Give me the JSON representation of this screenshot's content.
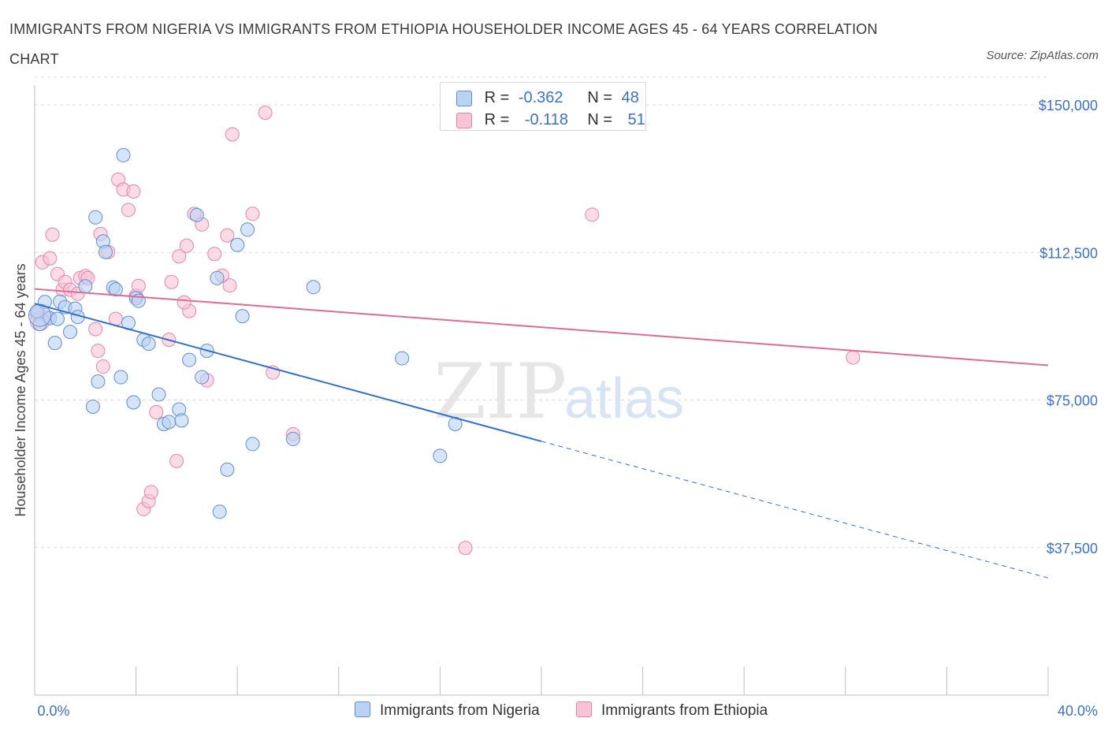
{
  "title": "IMMIGRANTS FROM NIGERIA VS IMMIGRANTS FROM ETHIOPIA HOUSEHOLDER INCOME AGES 45 - 64 YEARS CORRELATION CHART",
  "source": "Source: ZipAtlas.com",
  "watermark": {
    "zip": "ZIP",
    "atlas": "atlas"
  },
  "legend": {
    "rows": [
      {
        "r_label": "R =",
        "r_value": "-0.362",
        "n_label": "N =",
        "n_value": "48"
      },
      {
        "r_label": "R =",
        "r_value": "-0.118",
        "n_label": "N =",
        "n_value": "51"
      }
    ]
  },
  "bottom_legend": {
    "nigeria": "Immigrants from Nigeria",
    "ethiopia": "Immigrants from Ethiopia"
  },
  "colors": {
    "nigeria_fill": "#b9d2f5",
    "nigeria_stroke": "#5b8fd6",
    "nigeria_line": "#2f6fcf",
    "ethiopia_fill": "#f8c3d4",
    "ethiopia_stroke": "#e585a6",
    "ethiopia_line": "#e06a94",
    "tick_text": "#3a72c8",
    "grid": "#dcdcdc"
  },
  "chart_data": {
    "type": "scatter",
    "xlabel": "",
    "ylabel": "Householder Income Ages 45 - 64 years",
    "x_tick_labels": [
      "0.0%",
      "40.0%"
    ],
    "y_tick_labels": [
      "$150,000",
      "$112,500",
      "$75,000",
      "$37,500"
    ],
    "y_ticks": [
      150000,
      112500,
      75000,
      37500
    ],
    "xlim": [
      0,
      40
    ],
    "ylim": [
      0,
      157000
    ],
    "grid": true,
    "legend_position": "top-center",
    "series": [
      {
        "name": "Immigrants from Nigeria",
        "points": [
          [
            0.1,
            97500
          ],
          [
            0.2,
            94300
          ],
          [
            0.4,
            99900
          ],
          [
            0.6,
            95800
          ],
          [
            0.8,
            89500
          ],
          [
            1.0,
            100000
          ],
          [
            1.2,
            98600
          ],
          [
            1.4,
            92300
          ],
          [
            1.6,
            98200
          ],
          [
            1.7,
            96100
          ],
          [
            2.0,
            103900
          ],
          [
            2.3,
            73300
          ],
          [
            2.4,
            121400
          ],
          [
            2.5,
            79700
          ],
          [
            2.7,
            115300
          ],
          [
            2.8,
            112600
          ],
          [
            3.1,
            103600
          ],
          [
            3.2,
            103100
          ],
          [
            3.4,
            80800
          ],
          [
            3.5,
            137200
          ],
          [
            3.7,
            94600
          ],
          [
            3.9,
            74400
          ],
          [
            4.0,
            100900
          ],
          [
            4.1,
            100200
          ],
          [
            4.3,
            90300
          ],
          [
            4.5,
            89300
          ],
          [
            4.9,
            76400
          ],
          [
            5.1,
            68900
          ],
          [
            5.3,
            69400
          ],
          [
            5.7,
            72600
          ],
          [
            5.8,
            69800
          ],
          [
            6.1,
            85200
          ],
          [
            6.4,
            122000
          ],
          [
            6.6,
            80800
          ],
          [
            6.8,
            87500
          ],
          [
            7.2,
            106000
          ],
          [
            7.6,
            57300
          ],
          [
            8.0,
            114400
          ],
          [
            8.2,
            96300
          ],
          [
            8.4,
            118300
          ],
          [
            8.6,
            63800
          ],
          [
            10.2,
            65100
          ],
          [
            11.0,
            103700
          ],
          [
            14.5,
            85600
          ],
          [
            16.0,
            60800
          ],
          [
            16.6,
            68900
          ],
          [
            7.3,
            46600
          ],
          [
            0.9,
            95600
          ]
        ]
      },
      {
        "name": "Immigrants from Ethiopia",
        "points": [
          [
            0.1,
            96800
          ],
          [
            0.3,
            110000
          ],
          [
            0.5,
            96000
          ],
          [
            0.6,
            111000
          ],
          [
            0.7,
            117000
          ],
          [
            0.9,
            107000
          ],
          [
            1.1,
            103000
          ],
          [
            1.2,
            105000
          ],
          [
            1.4,
            103000
          ],
          [
            1.7,
            102000
          ],
          [
            1.8,
            106000
          ],
          [
            2.0,
            106500
          ],
          [
            2.1,
            106000
          ],
          [
            2.4,
            93000
          ],
          [
            2.5,
            87500
          ],
          [
            2.6,
            117200
          ],
          [
            2.7,
            83500
          ],
          [
            2.9,
            112600
          ],
          [
            3.2,
            95600
          ],
          [
            3.3,
            131000
          ],
          [
            3.5,
            128500
          ],
          [
            3.7,
            123300
          ],
          [
            3.9,
            128000
          ],
          [
            4.0,
            101500
          ],
          [
            4.1,
            104000
          ],
          [
            4.3,
            47300
          ],
          [
            4.5,
            49300
          ],
          [
            4.6,
            51600
          ],
          [
            4.8,
            71900
          ],
          [
            5.3,
            90300
          ],
          [
            5.4,
            105000
          ],
          [
            5.6,
            59500
          ],
          [
            5.7,
            111500
          ],
          [
            6.0,
            114200
          ],
          [
            6.1,
            97600
          ],
          [
            6.3,
            122300
          ],
          [
            6.6,
            119600
          ],
          [
            6.8,
            80000
          ],
          [
            7.1,
            112100
          ],
          [
            7.4,
            106600
          ],
          [
            7.6,
            116800
          ],
          [
            7.7,
            104100
          ],
          [
            7.8,
            142500
          ],
          [
            8.6,
            122300
          ],
          [
            9.1,
            148000
          ],
          [
            9.4,
            82000
          ],
          [
            10.2,
            66300
          ],
          [
            17.0,
            37400
          ],
          [
            22.0,
            122100
          ],
          [
            32.3,
            85800
          ],
          [
            5.9,
            99800
          ]
        ]
      }
    ],
    "trend_lines": [
      {
        "name": "Immigrants from Nigeria",
        "x0": 0.0,
        "y0": 99500,
        "x1": 20.0,
        "y1": 64500,
        "dashed_to_x": 40.0,
        "dashed_to_y": 29800
      },
      {
        "name": "Immigrants from Ethiopia",
        "x0": 0.0,
        "y0": 103200,
        "x1": 40.0,
        "y1": 83800
      }
    ]
  }
}
